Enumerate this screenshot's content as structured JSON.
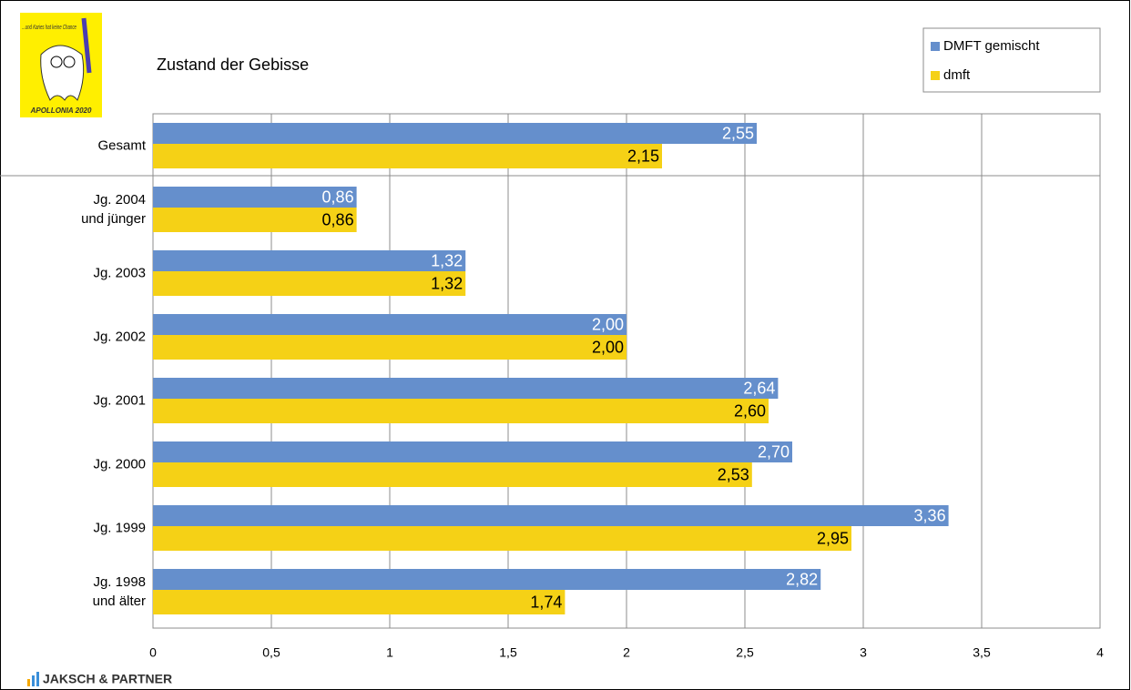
{
  "logo_text": "...und Karies hat keine Chance",
  "logo_caption": "APOLLONIA 2020",
  "footer": "JAKSCH & PARTNER",
  "chart_data": {
    "type": "hbar",
    "title": "Zustand der Gebisse",
    "categories": [
      "Gesamt",
      "Jg. 2004\nund jünger",
      "Jg. 2003",
      "Jg. 2002",
      "Jg. 2001",
      "Jg. 2000",
      "Jg. 1999",
      "Jg. 1998\nund älter"
    ],
    "series": [
      {
        "name": "DMFT gemischt",
        "color": "#658fcc",
        "label_color": "#ffffff",
        "values": [
          2.55,
          0.86,
          1.32,
          2.0,
          2.64,
          2.7,
          3.36,
          2.82
        ],
        "value_labels": [
          "2,55",
          "0,86",
          "1,32",
          "2,00",
          "2,64",
          "2,70",
          "3,36",
          "2,82"
        ]
      },
      {
        "name": "dmft",
        "color": "#f5d116",
        "label_color": "#000000",
        "values": [
          2.15,
          0.86,
          1.32,
          2.0,
          2.6,
          2.53,
          2.95,
          1.74
        ],
        "value_labels": [
          "2,15",
          "0,86",
          "1,32",
          "2,00",
          "2,60",
          "2,53",
          "2,95",
          "1,74"
        ]
      }
    ],
    "xlim": [
      0,
      4
    ],
    "xticks": [
      0,
      {
        "value": 0.5,
        "label": "0,5"
      },
      1,
      {
        "value": 1.5,
        "label": "1,5"
      },
      2,
      {
        "value": 2.5,
        "label": "2,5"
      },
      3,
      {
        "value": 3.5,
        "label": "3,5"
      },
      4
    ],
    "grid": true,
    "legend": "top-right"
  }
}
